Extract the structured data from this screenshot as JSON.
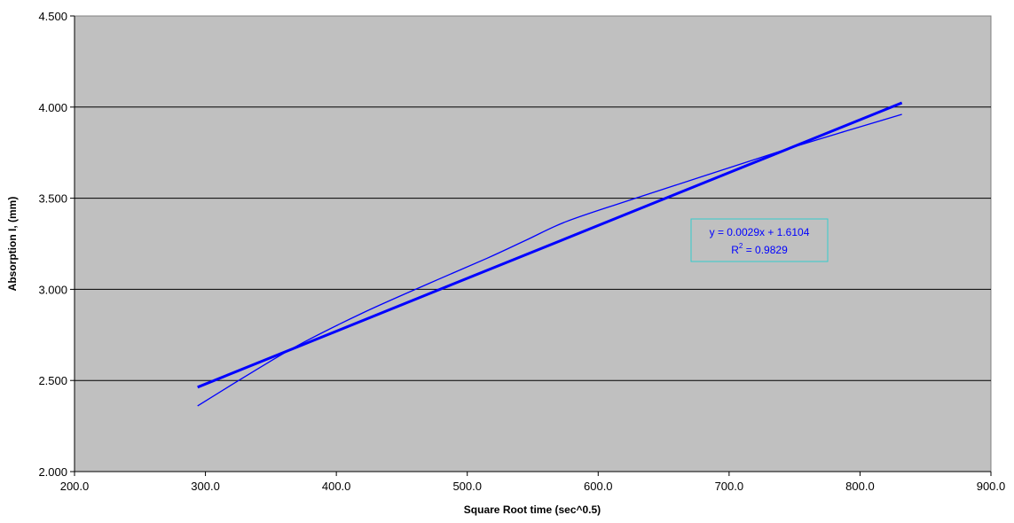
{
  "chart_data": {
    "type": "scatter",
    "title": "",
    "xlabel": "Square Root time (sec^0.5)",
    "ylabel": "Absorption I, (mm)",
    "xlim": [
      200.0,
      900.0
    ],
    "ylim": [
      2.0,
      4.5
    ],
    "x_ticks": [
      "200.0",
      "300.0",
      "400.0",
      "500.0",
      "600.0",
      "700.0",
      "800.0",
      "900.0"
    ],
    "y_ticks": [
      "2.000",
      "2.500",
      "3.000",
      "3.500",
      "4.000",
      "4.500"
    ],
    "grid": "horizontal",
    "plot_background": "#c0c0c0",
    "series": [
      {
        "color": "#0000ff",
        "smooth": true,
        "x": [
          294,
          330,
          370,
          420,
          470,
          515,
          545,
          575,
          620,
          680,
          740,
          790,
          832
        ],
        "y": [
          2.36,
          2.52,
          2.69,
          2.87,
          3.03,
          3.17,
          3.27,
          3.37,
          3.48,
          3.62,
          3.76,
          3.87,
          3.96
        ]
      }
    ],
    "trendline": {
      "color": "#0000ff",
      "slope": 0.0029,
      "intercept": 1.6104,
      "x_start": 294,
      "x_end": 832,
      "equation": "y = 0.0029x + 1.6104",
      "r2_prefix": "R",
      "r2_sup": "2",
      "r2_suffix": " = 0.9829",
      "label_box_color": "#33cccc"
    }
  }
}
